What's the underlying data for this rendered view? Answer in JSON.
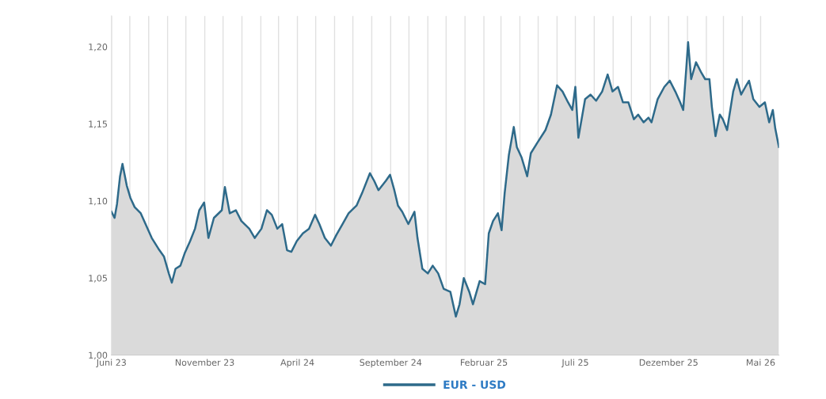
{
  "chart_data": {
    "type": "area",
    "legend": "bottom",
    "grid": "x",
    "marker": "none",
    "line_style": "solid",
    "xlim": [
      "2023-06-01",
      "2026-05-31"
    ],
    "ylim": [
      1.0,
      1.22
    ],
    "yticks": [
      {
        "value": 1.0,
        "label": "1,00"
      },
      {
        "value": 1.05,
        "label": "1,05"
      },
      {
        "value": 1.1,
        "label": "1,10"
      },
      {
        "value": 1.15,
        "label": "1,15"
      },
      {
        "value": 1.2,
        "label": "1,20"
      }
    ],
    "xticks": [
      {
        "value": "2023-06-01",
        "label": "Juni 23"
      },
      {
        "value": "2023-07-01",
        "label": null
      },
      {
        "value": "2023-08-01",
        "label": null
      },
      {
        "value": "2023-09-01",
        "label": null
      },
      {
        "value": "2023-10-01",
        "label": null
      },
      {
        "value": "2023-11-01",
        "label": "November 23"
      },
      {
        "value": "2023-12-01",
        "label": null
      },
      {
        "value": "2024-01-01",
        "label": null
      },
      {
        "value": "2024-02-01",
        "label": null
      },
      {
        "value": "2024-03-01",
        "label": null
      },
      {
        "value": "2024-04-01",
        "label": "April 24"
      },
      {
        "value": "2024-05-01",
        "label": null
      },
      {
        "value": "2024-06-01",
        "label": null
      },
      {
        "value": "2024-07-01",
        "label": null
      },
      {
        "value": "2024-08-01",
        "label": null
      },
      {
        "value": "2024-09-01",
        "label": "September 24"
      },
      {
        "value": "2024-10-01",
        "label": null
      },
      {
        "value": "2024-11-01",
        "label": null
      },
      {
        "value": "2024-12-01",
        "label": null
      },
      {
        "value": "2025-01-01",
        "label": null
      },
      {
        "value": "2025-02-01",
        "label": "Februar 25"
      },
      {
        "value": "2025-03-01",
        "label": null
      },
      {
        "value": "2025-04-01",
        "label": null
      },
      {
        "value": "2025-05-01",
        "label": null
      },
      {
        "value": "2025-06-01",
        "label": null
      },
      {
        "value": "2025-07-01",
        "label": "Juli 25"
      },
      {
        "value": "2025-08-01",
        "label": null
      },
      {
        "value": "2025-09-01",
        "label": null
      },
      {
        "value": "2025-10-01",
        "label": null
      },
      {
        "value": "2025-11-01",
        "label": null
      },
      {
        "value": "2025-12-01",
        "label": "Dezember 25"
      },
      {
        "value": "2026-01-01",
        "label": null
      },
      {
        "value": "2026-02-01",
        "label": null
      },
      {
        "value": "2026-03-01",
        "label": null
      },
      {
        "value": "2026-04-01",
        "label": null
      },
      {
        "value": "2026-05-01",
        "label": "Mai 26"
      }
    ],
    "series": [
      {
        "name": "EUR - USD",
        "color": "#2e6a8a",
        "x": [
          "2023-06-01",
          "2023-06-06",
          "2023-06-10",
          "2023-06-15",
          "2023-06-19",
          "2023-06-26",
          "2023-07-02",
          "2023-07-09",
          "2023-07-19",
          "2023-07-28",
          "2023-08-06",
          "2023-08-17",
          "2023-08-26",
          "2023-09-03",
          "2023-09-08",
          "2023-09-14",
          "2023-09-22",
          "2023-09-29",
          "2023-10-08",
          "2023-10-16",
          "2023-10-23",
          "2023-10-31",
          "2023-11-07",
          "2023-11-16",
          "2023-11-29",
          "2023-12-04",
          "2023-12-12",
          "2023-12-22",
          "2023-12-31",
          "2024-01-13",
          "2024-01-22",
          "2024-02-02",
          "2024-02-11",
          "2024-02-19",
          "2024-02-28",
          "2024-03-07",
          "2024-03-15",
          "2024-03-22",
          "2024-03-31",
          "2024-04-10",
          "2024-04-20",
          "2024-04-30",
          "2024-05-07",
          "2024-05-16",
          "2024-05-26",
          "2024-06-04",
          "2024-06-14",
          "2024-06-24",
          "2024-07-07",
          "2024-07-16",
          "2024-07-29",
          "2024-08-05",
          "2024-08-12",
          "2024-08-24",
          "2024-08-31",
          "2024-09-07",
          "2024-09-13",
          "2024-09-20",
          "2024-09-30",
          "2024-10-10",
          "2024-10-15",
          "2024-10-23",
          "2024-11-01",
          "2024-11-09",
          "2024-11-18",
          "2024-11-27",
          "2024-12-08",
          "2024-12-17",
          "2024-12-23",
          "2024-12-30",
          "2025-01-08",
          "2025-01-14",
          "2025-01-25",
          "2025-02-03",
          "2025-02-09",
          "2025-02-16",
          "2025-02-24",
          "2025-03-02",
          "2025-03-07",
          "2025-03-14",
          "2025-03-22",
          "2025-03-27",
          "2025-04-04",
          "2025-04-13",
          "2025-04-19",
          "2025-04-30",
          "2025-05-13",
          "2025-05-22",
          "2025-06-01",
          "2025-06-10",
          "2025-06-19",
          "2025-06-26",
          "2025-07-01",
          "2025-07-06",
          "2025-07-17",
          "2025-07-26",
          "2025-08-04",
          "2025-08-14",
          "2025-08-23",
          "2025-08-31",
          "2025-09-09",
          "2025-09-17",
          "2025-09-26",
          "2025-10-05",
          "2025-10-12",
          "2025-10-21",
          "2025-10-29",
          "2025-11-03",
          "2025-11-13",
          "2025-11-24",
          "2025-12-03",
          "2025-12-12",
          "2025-12-20",
          "2025-12-25",
          "2025-12-30",
          "2026-01-02",
          "2026-01-07",
          "2026-01-15",
          "2026-01-24",
          "2026-01-30",
          "2026-02-06",
          "2026-02-10",
          "2026-02-16",
          "2026-02-23",
          "2026-02-28",
          "2026-03-07",
          "2026-03-17",
          "2026-03-23",
          "2026-03-30",
          "2026-04-06",
          "2026-04-12",
          "2026-04-19",
          "2026-04-29",
          "2026-05-08",
          "2026-05-15",
          "2026-05-21",
          "2026-05-25",
          "2026-05-31"
        ],
        "values": [
          1.093,
          1.089,
          1.098,
          1.116,
          1.124,
          1.11,
          1.102,
          1.096,
          1.092,
          1.084,
          1.076,
          1.069,
          1.064,
          1.053,
          1.047,
          1.056,
          1.058,
          1.066,
          1.074,
          1.082,
          1.094,
          1.099,
          1.076,
          1.089,
          1.094,
          1.109,
          1.092,
          1.094,
          1.087,
          1.082,
          1.076,
          1.082,
          1.094,
          1.091,
          1.082,
          1.085,
          1.068,
          1.067,
          1.074,
          1.079,
          1.082,
          1.091,
          1.085,
          1.076,
          1.071,
          1.078,
          1.085,
          1.092,
          1.097,
          1.105,
          1.118,
          1.113,
          1.107,
          1.113,
          1.117,
          1.107,
          1.097,
          1.093,
          1.085,
          1.093,
          1.076,
          1.056,
          1.053,
          1.058,
          1.053,
          1.043,
          1.041,
          1.025,
          1.033,
          1.05,
          1.041,
          1.033,
          1.048,
          1.046,
          1.079,
          1.087,
          1.092,
          1.081,
          1.105,
          1.13,
          1.148,
          1.135,
          1.128,
          1.116,
          1.131,
          1.138,
          1.146,
          1.156,
          1.175,
          1.171,
          1.164,
          1.159,
          1.174,
          1.141,
          1.166,
          1.169,
          1.165,
          1.171,
          1.182,
          1.171,
          1.174,
          1.164,
          1.164,
          1.153,
          1.156,
          1.151,
          1.154,
          1.151,
          1.166,
          1.174,
          1.178,
          1.171,
          1.164,
          1.159,
          1.186,
          1.203,
          1.179,
          1.19,
          1.183,
          1.179,
          1.179,
          1.161,
          1.142,
          1.156,
          1.153,
          1.146,
          1.171,
          1.179,
          1.169,
          1.174,
          1.178,
          1.166,
          1.161,
          1.164,
          1.151,
          1.159,
          1.147,
          1.135
        ]
      }
    ]
  }
}
